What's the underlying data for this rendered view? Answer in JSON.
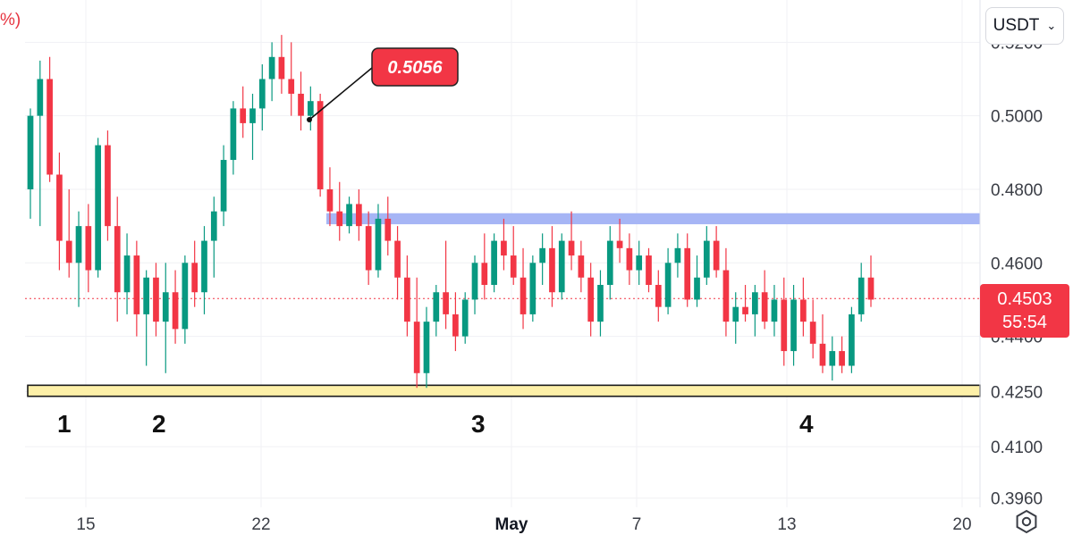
{
  "header": {
    "currency": "USDT",
    "fragment": "%)"
  },
  "chart_data": {
    "type": "candlestick",
    "ylim": [
      0.3935,
      0.5315
    ],
    "x_day_range": [
      11.3,
      21.3
    ],
    "y_ticks": [
      "0.5200",
      "0.5000",
      "0.4800",
      "0.4600",
      "0.4400",
      "0.4250",
      "0.4100",
      "0.3960"
    ],
    "x_ticks": [
      {
        "label": "15",
        "day": 15
      },
      {
        "label": "22",
        "day": 22
      },
      {
        "label": "May",
        "day": 32,
        "bold": true
      },
      {
        "label": "7",
        "day": 37
      },
      {
        "label": "13",
        "day": 43
      },
      {
        "label": "20",
        "day": 50
      }
    ],
    "current_price": {
      "value": 0.4503,
      "label": "0.4503",
      "timer": "55:54",
      "color": "#f23645"
    },
    "callout": {
      "label": "0.5056",
      "value": 0.5056,
      "color": "#f23645"
    },
    "support_zone": {
      "low": 0.4237,
      "high": 0.4267,
      "color": "#fdf0a8"
    },
    "resistance_zone": {
      "low": 0.4705,
      "high": 0.4735,
      "color": "#a6b5f5"
    },
    "markers": [
      "1",
      "2",
      "3",
      "4"
    ],
    "up_color": "#089981",
    "down_color": "#f23645",
    "candles": [
      [
        0.48,
        0.502,
        0.472,
        0.5
      ],
      [
        0.5,
        0.515,
        0.47,
        0.51
      ],
      [
        0.51,
        0.516,
        0.482,
        0.484
      ],
      [
        0.484,
        0.49,
        0.458,
        0.466
      ],
      [
        0.466,
        0.48,
        0.456,
        0.46
      ],
      [
        0.46,
        0.474,
        0.448,
        0.47
      ],
      [
        0.47,
        0.476,
        0.452,
        0.458
      ],
      [
        0.458,
        0.494,
        0.456,
        0.492
      ],
      [
        0.492,
        0.496,
        0.466,
        0.47
      ],
      [
        0.47,
        0.478,
        0.444,
        0.452
      ],
      [
        0.452,
        0.468,
        0.446,
        0.462
      ],
      [
        0.462,
        0.466,
        0.44,
        0.446
      ],
      [
        0.446,
        0.458,
        0.432,
        0.456
      ],
      [
        0.456,
        0.46,
        0.44,
        0.444
      ],
      [
        0.444,
        0.46,
        0.43,
        0.452
      ],
      [
        0.452,
        0.458,
        0.438,
        0.442
      ],
      [
        0.442,
        0.462,
        0.438,
        0.46
      ],
      [
        0.46,
        0.466,
        0.448,
        0.452
      ],
      [
        0.452,
        0.47,
        0.446,
        0.466
      ],
      [
        0.466,
        0.478,
        0.456,
        0.474
      ],
      [
        0.474,
        0.492,
        0.47,
        0.488
      ],
      [
        0.488,
        0.504,
        0.484,
        0.502
      ],
      [
        0.502,
        0.508,
        0.494,
        0.498
      ],
      [
        0.498,
        0.506,
        0.488,
        0.502
      ],
      [
        0.502,
        0.514,
        0.496,
        0.51
      ],
      [
        0.51,
        0.52,
        0.504,
        0.516
      ],
      [
        0.516,
        0.522,
        0.506,
        0.51
      ],
      [
        0.51,
        0.52,
        0.5,
        0.506
      ],
      [
        0.506,
        0.512,
        0.496,
        0.5
      ],
      [
        0.5,
        0.508,
        0.496,
        0.504
      ],
      [
        0.504,
        0.506,
        0.478,
        0.48
      ],
      [
        0.48,
        0.486,
        0.47,
        0.474
      ],
      [
        0.474,
        0.482,
        0.466,
        0.47
      ],
      [
        0.47,
        0.478,
        0.468,
        0.476
      ],
      [
        0.476,
        0.48,
        0.466,
        0.47
      ],
      [
        0.47,
        0.474,
        0.454,
        0.458
      ],
      [
        0.458,
        0.476,
        0.456,
        0.472
      ],
      [
        0.472,
        0.478,
        0.462,
        0.466
      ],
      [
        0.466,
        0.47,
        0.45,
        0.456
      ],
      [
        0.456,
        0.462,
        0.44,
        0.444
      ],
      [
        0.444,
        0.456,
        0.426,
        0.43
      ],
      [
        0.43,
        0.448,
        0.426,
        0.444
      ],
      [
        0.444,
        0.454,
        0.44,
        0.452
      ],
      [
        0.452,
        0.466,
        0.442,
        0.446
      ],
      [
        0.446,
        0.452,
        0.436,
        0.44
      ],
      [
        0.44,
        0.452,
        0.438,
        0.45
      ],
      [
        0.45,
        0.462,
        0.446,
        0.46
      ],
      [
        0.46,
        0.468,
        0.45,
        0.454
      ],
      [
        0.454,
        0.468,
        0.452,
        0.466
      ],
      [
        0.466,
        0.472,
        0.458,
        0.462
      ],
      [
        0.462,
        0.47,
        0.454,
        0.456
      ],
      [
        0.456,
        0.464,
        0.442,
        0.446
      ],
      [
        0.446,
        0.462,
        0.444,
        0.46
      ],
      [
        0.46,
        0.468,
        0.454,
        0.464
      ],
      [
        0.464,
        0.47,
        0.448,
        0.452
      ],
      [
        0.452,
        0.468,
        0.45,
        0.466
      ],
      [
        0.466,
        0.474,
        0.458,
        0.462
      ],
      [
        0.462,
        0.466,
        0.452,
        0.456
      ],
      [
        0.456,
        0.46,
        0.44,
        0.444
      ],
      [
        0.444,
        0.458,
        0.44,
        0.454
      ],
      [
        0.454,
        0.47,
        0.45,
        0.466
      ],
      [
        0.466,
        0.472,
        0.46,
        0.464
      ],
      [
        0.464,
        0.468,
        0.454,
        0.458
      ],
      [
        0.458,
        0.466,
        0.454,
        0.462
      ],
      [
        0.462,
        0.464,
        0.452,
        0.454
      ],
      [
        0.454,
        0.458,
        0.444,
        0.448
      ],
      [
        0.448,
        0.464,
        0.446,
        0.46
      ],
      [
        0.46,
        0.468,
        0.456,
        0.464
      ],
      [
        0.464,
        0.468,
        0.448,
        0.45
      ],
      [
        0.45,
        0.462,
        0.448,
        0.456
      ],
      [
        0.456,
        0.47,
        0.454,
        0.466
      ],
      [
        0.466,
        0.47,
        0.456,
        0.458
      ],
      [
        0.458,
        0.464,
        0.44,
        0.444
      ],
      [
        0.444,
        0.452,
        0.438,
        0.448
      ],
      [
        0.448,
        0.454,
        0.444,
        0.446
      ],
      [
        0.446,
        0.454,
        0.44,
        0.452
      ],
      [
        0.452,
        0.458,
        0.442,
        0.444
      ],
      [
        0.444,
        0.454,
        0.44,
        0.45
      ],
      [
        0.45,
        0.456,
        0.432,
        0.436
      ],
      [
        0.436,
        0.454,
        0.432,
        0.45
      ],
      [
        0.45,
        0.456,
        0.44,
        0.444
      ],
      [
        0.444,
        0.45,
        0.434,
        0.438
      ],
      [
        0.438,
        0.446,
        0.43,
        0.432
      ],
      [
        0.432,
        0.44,
        0.428,
        0.436
      ],
      [
        0.436,
        0.44,
        0.43,
        0.432
      ],
      [
        0.432,
        0.448,
        0.43,
        0.446
      ],
      [
        0.446,
        0.46,
        0.444,
        0.456
      ],
      [
        0.456,
        0.462,
        0.448,
        0.45
      ]
    ]
  }
}
